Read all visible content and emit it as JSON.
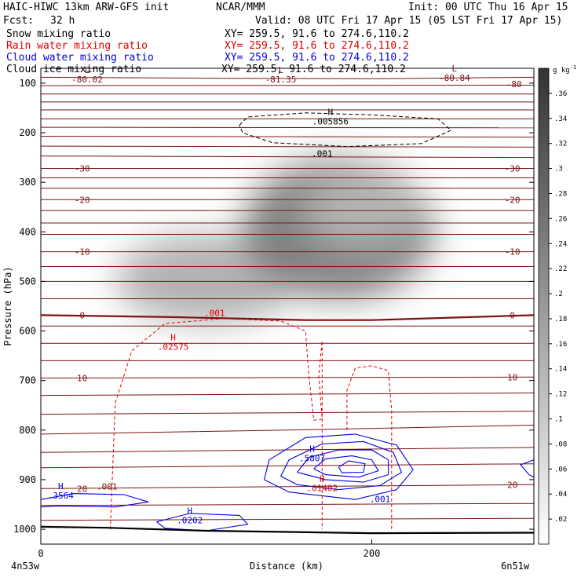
{
  "header": {
    "model": "HAIC-HIWC 13km ARW-GFS init",
    "org": "NCAR/MMM",
    "init": "Init: 00 UTC Thu 16 Apr 15",
    "fcst_label": "Fcst:",
    "fcst_value": "32 h",
    "valid": "Valid: 08 UTC Fri 17 Apr 15 (05 LST Fri 17 Apr 15)"
  },
  "fields": [
    {
      "name": "Snow mixing ratio",
      "xy": "XY= 259.5, 91.6 to 274.6,110.2",
      "color": "#000000"
    },
    {
      "name": "Rain water mixing ratio",
      "xy": "XY= 259.5, 91.6 to 274.6,110.2",
      "color": "#e00000"
    },
    {
      "name": "Cloud water mixing ratio",
      "xy": "XY= 259.5, 91.6 to 274.6,110.2",
      "color": "#0000e0"
    },
    {
      "name": "Cloud ice mixing ratio",
      "xy": "XY= 259.5, 91.6 to 274.6,110.2",
      "color": "#000000"
    }
  ],
  "chart_data": {
    "type": "contour-cross-section",
    "xlabel": "Distance (km)",
    "ylabel": "Pressure (hPa)",
    "x_ticks": [
      0,
      200
    ],
    "y_ticks": [
      100,
      200,
      300,
      400,
      500,
      600,
      700,
      800,
      900,
      1000
    ],
    "xlim": [
      0,
      298
    ],
    "ylim": [
      1030,
      70
    ],
    "endpoint_labels": {
      "left": "4n53w",
      "right": "6n51w"
    },
    "colorbar": {
      "unit_label": "g kg",
      "unit_exp": "-1",
      "ticks": [
        ".02",
        ".04",
        ".06",
        ".08",
        ".1",
        ".12",
        ".14",
        ".16",
        ".18",
        ".2",
        ".22",
        ".24",
        ".26",
        ".28",
        ".3",
        ".32",
        ".34",
        ".36"
      ]
    },
    "temperature_labels": [
      "-30",
      "-20",
      "-10",
      "0",
      "10",
      "20",
      "-80.02",
      "-81.35",
      "-80.84",
      "-80"
    ],
    "extrema_labels": [
      {
        "mark": "L",
        "value": "-80.02"
      },
      {
        "mark": "L",
        "value": "-81.35"
      },
      {
        "mark": "L",
        "value": "-80.84"
      },
      {
        "mark": "H",
        "value": ".005856"
      },
      {
        "mark": "H",
        "value": ".02575"
      },
      {
        "mark": "H",
        "value": ".5807"
      },
      {
        "mark": "H",
        "value": ".01402"
      },
      {
        "mark": "H",
        "value": ".3564"
      },
      {
        "mark": "H",
        "value": ".0202"
      }
    ],
    "contour_labels": [
      ".001",
      ".001",
      ".001",
      ".001"
    ],
    "isotherm_series": [
      {
        "label": "-80",
        "p": [
          [
            0,
            88
          ],
          [
            100,
            90
          ],
          [
            200,
            91
          ],
          [
            298,
            88
          ]
        ]
      },
      {
        "label": "",
        "p": [
          [
            0,
            105
          ],
          [
            298,
            104
          ]
        ]
      },
      {
        "label": "",
        "p": [
          [
            0,
            122
          ],
          [
            298,
            122
          ]
        ]
      },
      {
        "label": "",
        "p": [
          [
            0,
            138
          ],
          [
            298,
            138
          ]
        ]
      },
      {
        "label": "",
        "p": [
          [
            0,
            154
          ],
          [
            298,
            154
          ]
        ]
      },
      {
        "label": "",
        "p": [
          [
            0,
            172
          ],
          [
            298,
            172
          ]
        ]
      },
      {
        "label": "",
        "p": [
          [
            0,
            189
          ],
          [
            298,
            190
          ]
        ]
      },
      {
        "label": "",
        "p": [
          [
            0,
            207
          ],
          [
            298,
            209
          ]
        ]
      },
      {
        "label": "",
        "p": [
          [
            0,
            227
          ],
          [
            298,
            229
          ]
        ]
      },
      {
        "label": "",
        "p": [
          [
            0,
            247
          ],
          [
            298,
            250
          ]
        ]
      },
      {
        "label": "-30",
        "p": [
          [
            0,
            272
          ],
          [
            298,
            272
          ]
        ]
      },
      {
        "label": "",
        "p": [
          [
            0,
            291
          ],
          [
            298,
            291
          ]
        ]
      },
      {
        "label": "",
        "p": [
          [
            0,
            312
          ],
          [
            298,
            312
          ]
        ]
      },
      {
        "label": "-20",
        "p": [
          [
            0,
            335
          ],
          [
            298,
            335
          ]
        ]
      },
      {
        "label": "",
        "p": [
          [
            0,
            357
          ],
          [
            298,
            357
          ]
        ]
      },
      {
        "label": "",
        "p": [
          [
            0,
            382
          ],
          [
            298,
            382
          ]
        ]
      },
      {
        "label": "",
        "p": [
          [
            0,
            405
          ],
          [
            298,
            405
          ]
        ]
      },
      {
        "label": "-10",
        "p": [
          [
            0,
            440
          ],
          [
            298,
            440
          ]
        ]
      },
      {
        "label": "",
        "p": [
          [
            0,
            470
          ],
          [
            298,
            470
          ]
        ]
      },
      {
        "label": "",
        "p": [
          [
            0,
            500
          ],
          [
            298,
            500
          ]
        ]
      },
      {
        "label": "",
        "p": [
          [
            0,
            535
          ],
          [
            298,
            535
          ]
        ]
      },
      {
        "label": "0",
        "p": [
          [
            0,
            568
          ],
          [
            80,
            572
          ],
          [
            160,
            578
          ],
          [
            200,
            578
          ],
          [
            298,
            568
          ]
        ]
      },
      {
        "label": "",
        "p": [
          [
            0,
            590
          ],
          [
            298,
            590
          ]
        ]
      },
      {
        "label": "",
        "p": [
          [
            0,
            625
          ],
          [
            298,
            625
          ]
        ]
      },
      {
        "label": "",
        "p": [
          [
            0,
            660
          ],
          [
            298,
            660
          ]
        ]
      },
      {
        "label": "10",
        "p": [
          [
            0,
            695
          ],
          [
            298,
            693
          ]
        ]
      },
      {
        "label": "",
        "p": [
          [
            0,
            730
          ],
          [
            298,
            725
          ]
        ]
      },
      {
        "label": "",
        "p": [
          [
            0,
            768
          ],
          [
            298,
            762
          ]
        ]
      },
      {
        "label": "",
        "p": [
          [
            0,
            808
          ],
          [
            150,
            800
          ],
          [
            298,
            790
          ]
        ]
      },
      {
        "label": "",
        "p": [
          [
            0,
            845
          ],
          [
            298,
            835
          ]
        ]
      },
      {
        "label": "",
        "p": [
          [
            0,
            876
          ],
          [
            298,
            868
          ]
        ]
      },
      {
        "label": "20",
        "p": [
          [
            0,
            918
          ],
          [
            298,
            910
          ]
        ]
      },
      {
        "label": "",
        "p": [
          [
            0,
            952
          ],
          [
            298,
            948
          ]
        ]
      },
      {
        "label": "",
        "p": [
          [
            0,
            982
          ],
          [
            298,
            978
          ]
        ]
      }
    ],
    "ground": [
      [
        0,
        995
      ],
      [
        40,
        997
      ],
      [
        100,
        1003
      ],
      [
        200,
        1008
      ],
      [
        298,
        1007
      ]
    ],
    "snow_blobs": [
      {
        "x": 100,
        "p": 495,
        "rx": 55,
        "rp": 90,
        "v": 0.16
      },
      {
        "x": 180,
        "p": 395,
        "rx": 58,
        "rp": 140,
        "v": 0.26
      },
      {
        "x": 195,
        "p": 355,
        "rx": 35,
        "rp": 70,
        "v": 0.12
      }
    ],
    "ice_contour": [
      [
        120,
        185
      ],
      [
        125,
        168
      ],
      [
        160,
        160
      ],
      [
        200,
        164
      ],
      [
        240,
        172
      ],
      [
        248,
        195
      ],
      [
        230,
        222
      ],
      [
        185,
        228
      ],
      [
        140,
        220
      ],
      [
        122,
        200
      ],
      [
        120,
        185
      ]
    ],
    "rain_contours": [
      [
        [
          42,
          1000
        ],
        [
          45,
          745
        ],
        [
          55,
          640
        ],
        [
          75,
          585
        ],
        [
          110,
          575
        ],
        [
          145,
          580
        ],
        [
          160,
          600
        ],
        [
          162,
          690
        ],
        [
          165,
          780
        ],
        [
          170,
          778
        ],
        [
          168,
          690
        ],
        [
          170,
          620
        ],
        [
          170,
          1000
        ]
      ],
      [
        [
          185,
          800
        ],
        [
          185,
          720
        ],
        [
          190,
          675
        ],
        [
          200,
          670
        ],
        [
          210,
          680
        ],
        [
          212,
          760
        ],
        [
          212,
          1000
        ]
      ]
    ],
    "cloud_water_contours": [
      [
        [
          135,
          900
        ],
        [
          138,
          860
        ],
        [
          160,
          815
        ],
        [
          190,
          808
        ],
        [
          215,
          830
        ],
        [
          225,
          880
        ],
        [
          215,
          920
        ],
        [
          190,
          940
        ],
        [
          150,
          925
        ],
        [
          135,
          900
        ]
      ],
      [
        [
          145,
          893
        ],
        [
          150,
          860
        ],
        [
          170,
          828
        ],
        [
          195,
          823
        ],
        [
          213,
          845
        ],
        [
          218,
          885
        ],
        [
          205,
          912
        ],
        [
          180,
          920
        ],
        [
          155,
          910
        ],
        [
          145,
          893
        ]
      ],
      [
        [
          155,
          885
        ],
        [
          162,
          855
        ],
        [
          180,
          840
        ],
        [
          200,
          840
        ],
        [
          210,
          860
        ],
        [
          210,
          890
        ],
        [
          195,
          905
        ],
        [
          172,
          900
        ],
        [
          155,
          885
        ]
      ],
      [
        [
          165,
          878
        ],
        [
          172,
          858
        ],
        [
          188,
          852
        ],
        [
          200,
          860
        ],
        [
          204,
          882
        ],
        [
          192,
          895
        ],
        [
          172,
          890
        ],
        [
          165,
          878
        ]
      ],
      [
        [
          180,
          875
        ],
        [
          186,
          862
        ],
        [
          196,
          868
        ],
        [
          195,
          885
        ],
        [
          182,
          886
        ],
        [
          180,
          875
        ]
      ],
      [
        [
          0,
          940
        ],
        [
          20,
          928
        ],
        [
          50,
          930
        ],
        [
          65,
          945
        ],
        [
          45,
          955
        ],
        [
          10,
          953
        ],
        [
          0,
          955
        ]
      ],
      [
        [
          70,
          985
        ],
        [
          90,
          968
        ],
        [
          120,
          972
        ],
        [
          125,
          990
        ],
        [
          100,
          1003
        ],
        [
          75,
          998
        ],
        [
          70,
          985
        ]
      ],
      [
        [
          298,
          860
        ],
        [
          290,
          870
        ],
        [
          295,
          890
        ],
        [
          298,
          895
        ]
      ]
    ]
  }
}
